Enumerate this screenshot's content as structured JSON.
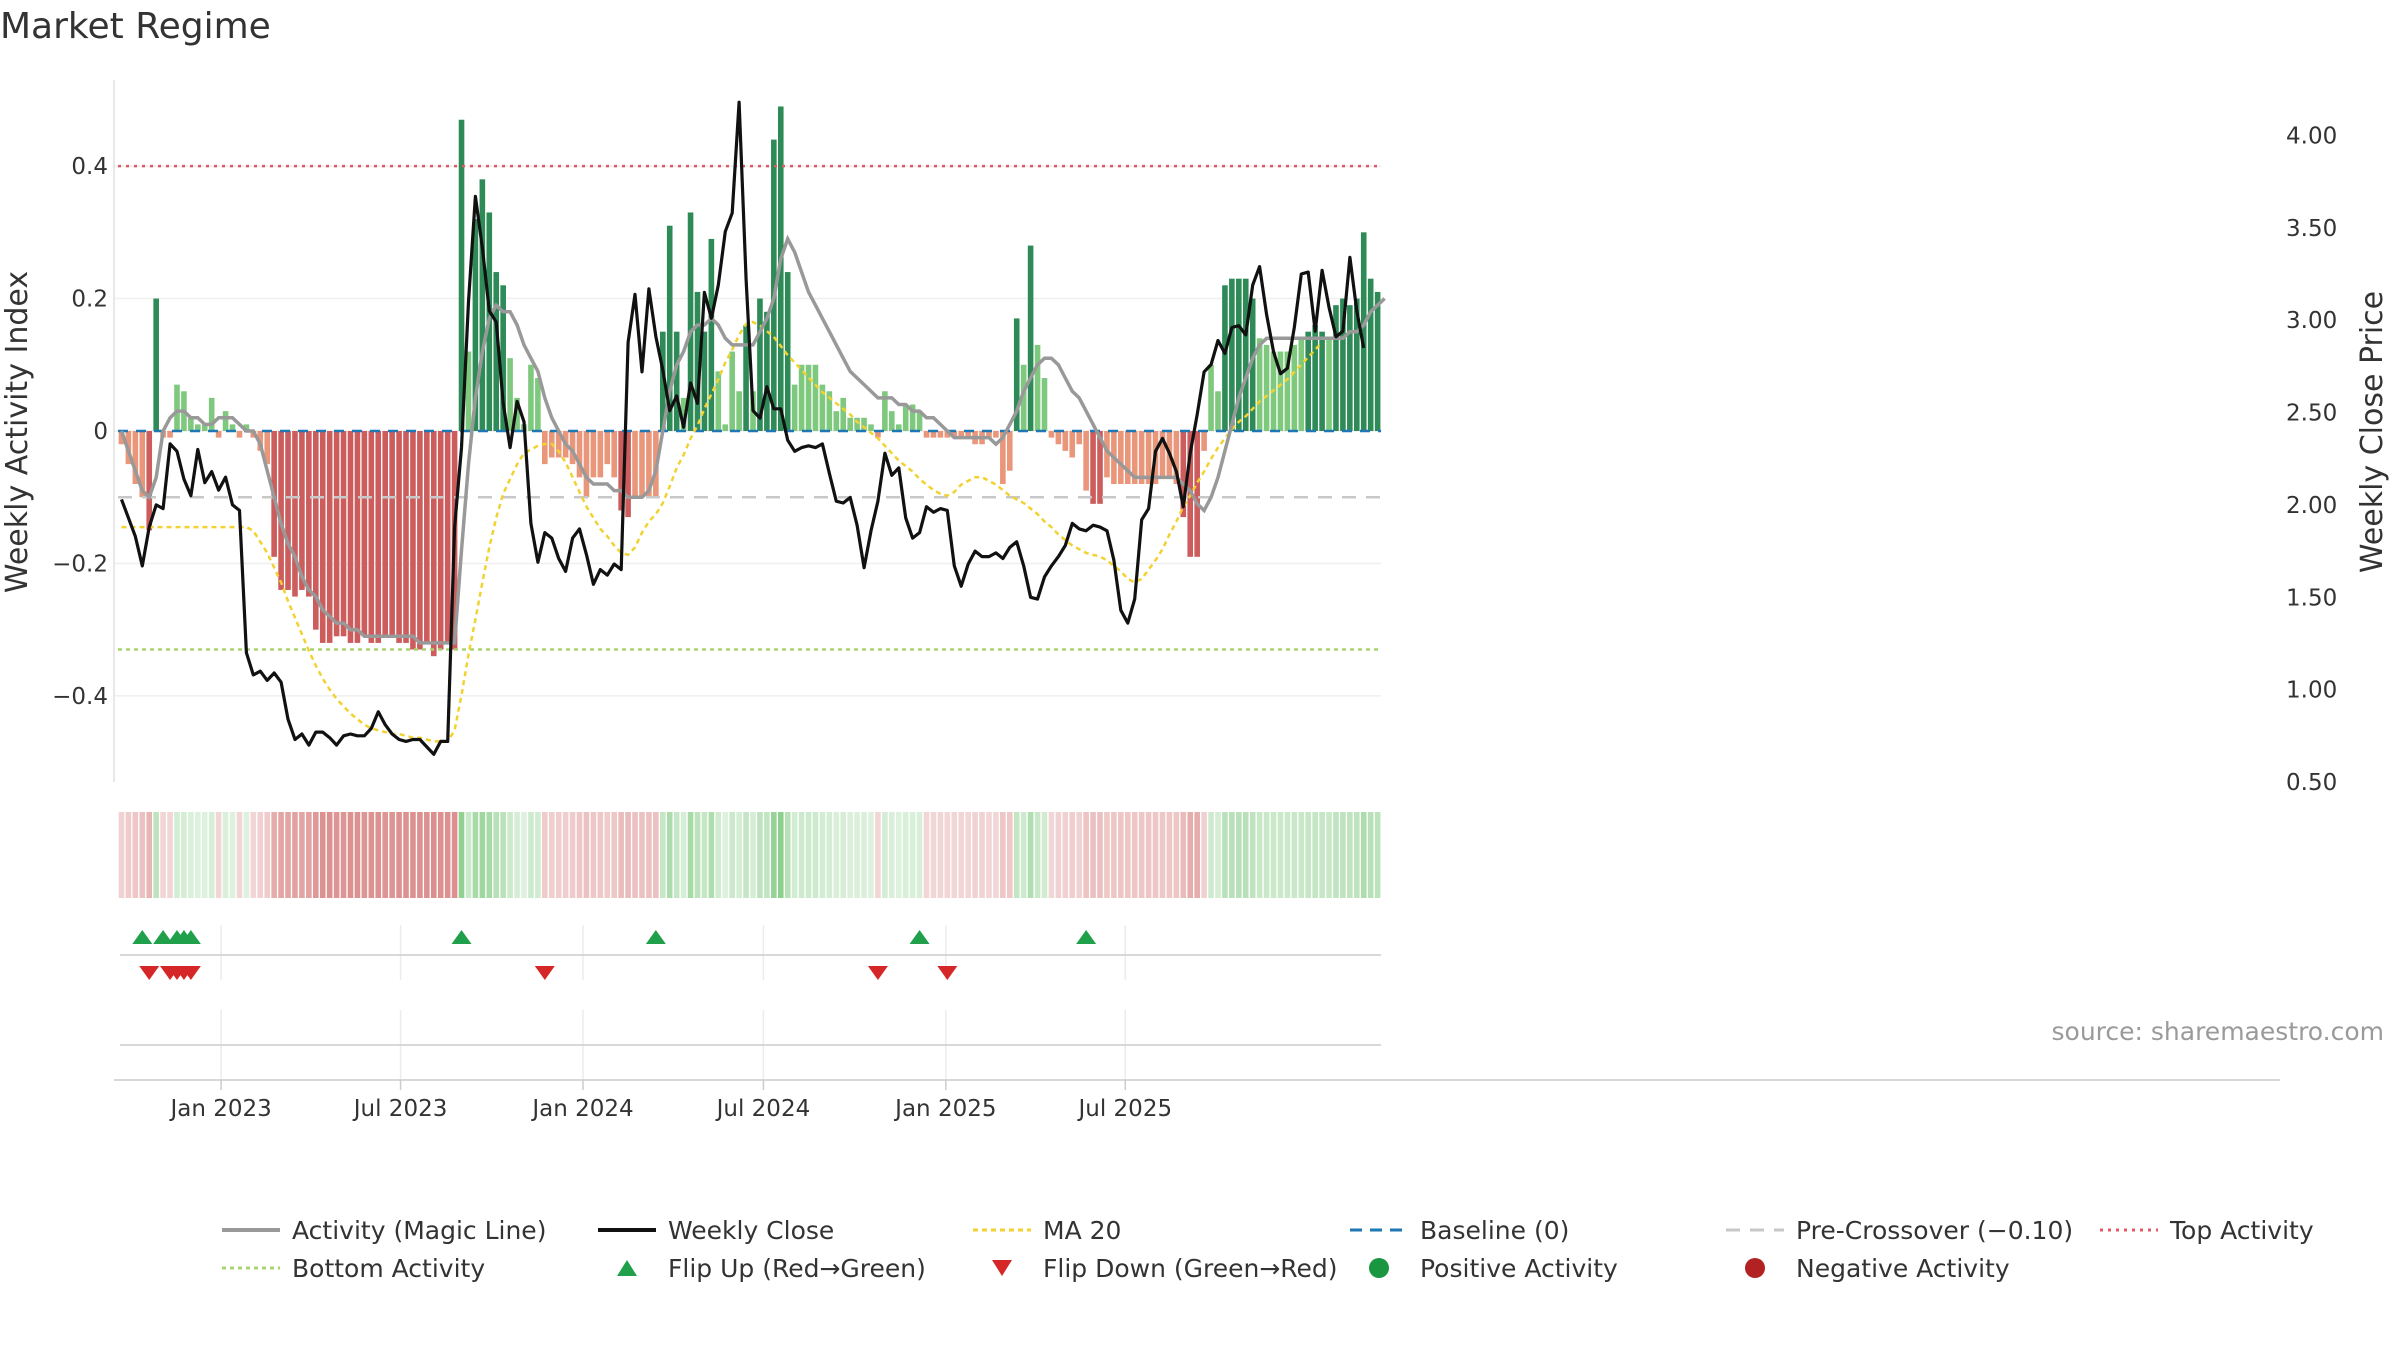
{
  "title": "Market Regime",
  "source": "source: sharemaestro.com",
  "colors": {
    "pos_dark": "#2e8b57",
    "pos_light": "#7fc97f",
    "neg_dark": "#cd5c5c",
    "neg_light": "#e9967a",
    "close": "#111111",
    "magic": "#999999",
    "ma20": "#f2d231",
    "baseline": "#1f77b4",
    "precross": "#c8c8c8",
    "top": "#e05a64",
    "bottom": "#a8d46f",
    "flip_up": "#20a04b",
    "flip_down": "#d62728",
    "pos_dot": "#1a9641",
    "neg_dot": "#b22222"
  },
  "chart_data": {
    "type": "bar",
    "title": "Market Regime",
    "x_start": "2022-09-19",
    "x_step_days": 7,
    "x_ticks": [
      "Jan 2023",
      "Jul 2023",
      "Jan 2024",
      "Jul 2024",
      "Jan 2025",
      "Jul 2025"
    ],
    "x_tick_dates": [
      "2023-01-01",
      "2023-07-01",
      "2024-01-01",
      "2024-07-01",
      "2025-01-01",
      "2025-07-01"
    ],
    "ylabel_left": "Weekly Activity Index",
    "ylabel_right": "Weekly Close Price",
    "ylim_left": [
      -0.53,
      0.53
    ],
    "ylim_right": [
      0.5,
      4.3
    ],
    "left_ticks": [
      0.4,
      0.2,
      0,
      -0.2,
      -0.4
    ],
    "left_tick_labels": [
      "0.4",
      "0.2",
      "0",
      "−0.2",
      "−0.4"
    ],
    "right_ticks": [
      4.0,
      3.5,
      3.0,
      2.5,
      2.0,
      1.5,
      1.0,
      0.5
    ],
    "right_tick_labels": [
      "4.00",
      "3.50",
      "3.00",
      "2.50",
      "2.00",
      "1.50",
      "1.00",
      "0.50"
    ],
    "reference_lines": {
      "top_activity": 0.4,
      "bottom_activity": -0.33,
      "pre_crossover": -0.1,
      "baseline": 0
    },
    "grid": true,
    "legend_position": "bottom",
    "activity": [
      -0.02,
      -0.05,
      -0.08,
      -0.1,
      -0.15,
      0.2,
      -0.01,
      -0.01,
      0.07,
      0.06,
      0.02,
      0.01,
      0.01,
      0.05,
      -0.01,
      0.03,
      0.01,
      -0.01,
      0.01,
      -0.01,
      -0.03,
      -0.05,
      -0.19,
      -0.24,
      -0.24,
      -0.25,
      -0.24,
      -0.25,
      -0.3,
      -0.32,
      -0.32,
      -0.31,
      -0.31,
      -0.32,
      -0.32,
      -0.31,
      -0.32,
      -0.32,
      -0.31,
      -0.31,
      -0.32,
      -0.32,
      -0.33,
      -0.33,
      -0.32,
      -0.34,
      -0.33,
      -0.32,
      -0.33,
      0.47,
      0.12,
      0.32,
      0.38,
      0.33,
      0.24,
      0.22,
      0.11,
      0.05,
      0.01,
      0.1,
      0.08,
      -0.05,
      -0.04,
      -0.04,
      -0.04,
      -0.05,
      -0.07,
      -0.1,
      -0.07,
      -0.07,
      -0.05,
      -0.07,
      -0.12,
      -0.13,
      -0.1,
      -0.1,
      -0.1,
      -0.1,
      0.15,
      0.31,
      0.15,
      0.05,
      0.33,
      0.21,
      0.15,
      0.29,
      0.09,
      0.01,
      0.12,
      0.06,
      0.16,
      0.06,
      0.2,
      0.18,
      0.44,
      0.49,
      0.24,
      0.07,
      0.1,
      0.1,
      0.1,
      0.07,
      0.06,
      0.03,
      0.05,
      0.02,
      0.02,
      0.02,
      0.01,
      -0.01,
      0.06,
      0.03,
      0.01,
      0.04,
      0.04,
      0.03,
      -0.01,
      -0.01,
      -0.01,
      -0.01,
      -0.01,
      -0.01,
      -0.01,
      -0.02,
      -0.02,
      -0.01,
      -0.01,
      -0.08,
      -0.06,
      0.17,
      0.1,
      0.28,
      0.13,
      0.08,
      -0.01,
      -0.02,
      -0.03,
      -0.04,
      -0.02,
      -0.09,
      -0.11,
      -0.11,
      -0.07,
      -0.08,
      -0.08,
      -0.08,
      -0.08,
      -0.08,
      -0.08,
      -0.08,
      -0.07,
      -0.07,
      -0.08,
      -0.13,
      -0.19,
      -0.19,
      -0.03,
      0.1,
      0.06,
      0.22,
      0.23,
      0.23,
      0.23,
      0.2,
      0.14,
      0.13,
      0.12,
      0.12,
      0.12,
      0.13,
      0.14,
      0.15,
      0.16,
      0.15,
      0.14,
      0.19,
      0.2,
      0.19,
      0.2,
      0.3,
      0.23,
      0.21
    ],
    "weekly_close": [
      2.03,
      1.93,
      1.83,
      1.67,
      1.88,
      2.0,
      1.98,
      2.33,
      2.29,
      2.14,
      2.05,
      2.3,
      2.12,
      2.18,
      2.08,
      2.15,
      2.0,
      1.97,
      1.2,
      1.08,
      1.1,
      1.05,
      1.09,
      1.04,
      0.84,
      0.73,
      0.76,
      0.7,
      0.77,
      0.77,
      0.74,
      0.7,
      0.75,
      0.76,
      0.75,
      0.75,
      0.79,
      0.88,
      0.81,
      0.76,
      0.73,
      0.72,
      0.73,
      0.73,
      0.69,
      0.65,
      0.72,
      0.72,
      1.88,
      2.31,
      3.1,
      3.67,
      3.39,
      3.05,
      2.99,
      2.55,
      2.31,
      2.56,
      2.45,
      1.9,
      1.69,
      1.85,
      1.82,
      1.71,
      1.64,
      1.82,
      1.87,
      1.73,
      1.57,
      1.65,
      1.62,
      1.68,
      1.65,
      2.88,
      3.14,
      2.72,
      3.17,
      2.91,
      2.73,
      2.51,
      2.59,
      2.42,
      2.66,
      2.55,
      3.15,
      3.01,
      3.19,
      3.48,
      3.58,
      4.18,
      3.22,
      2.51,
      2.47,
      2.64,
      2.52,
      2.52,
      2.35,
      2.29,
      2.31,
      2.32,
      2.31,
      2.33,
      2.17,
      2.02,
      2.01,
      2.04,
      1.89,
      1.66,
      1.86,
      2.02,
      2.28,
      2.16,
      2.2,
      1.93,
      1.82,
      1.85,
      1.99,
      1.96,
      1.98,
      1.97,
      1.67,
      1.56,
      1.68,
      1.75,
      1.72,
      1.72,
      1.74,
      1.71,
      1.77,
      1.8,
      1.67,
      1.5,
      1.49,
      1.61,
      1.67,
      1.72,
      1.78,
      1.9,
      1.87,
      1.86,
      1.89,
      1.88,
      1.86,
      1.7,
      1.43,
      1.36,
      1.49,
      1.92,
      1.98,
      2.29,
      2.36,
      2.28,
      2.18,
      1.99,
      2.28,
      2.49,
      2.72,
      2.76,
      2.89,
      2.82,
      2.96,
      2.97,
      2.92,
      3.19,
      3.29,
      3.03,
      2.83,
      2.71,
      2.74,
      2.96,
      3.25,
      3.26,
      2.94,
      3.27,
      3.07,
      2.91,
      2.94,
      3.34,
      3.05,
      2.85
    ],
    "magic_line": [
      0.0,
      -0.03,
      -0.06,
      -0.09,
      -0.1,
      -0.07,
      0.0,
      0.02,
      0.03,
      0.03,
      0.02,
      0.02,
      0.01,
      0.01,
      0.02,
      0.02,
      0.02,
      0.01,
      0.0,
      0.0,
      -0.02,
      -0.06,
      -0.1,
      -0.14,
      -0.17,
      -0.19,
      -0.22,
      -0.24,
      -0.25,
      -0.27,
      -0.28,
      -0.29,
      -0.29,
      -0.3,
      -0.3,
      -0.31,
      -0.31,
      -0.31,
      -0.31,
      -0.31,
      -0.31,
      -0.31,
      -0.31,
      -0.32,
      -0.32,
      -0.32,
      -0.32,
      -0.32,
      -0.32,
      -0.18,
      -0.05,
      0.05,
      0.12,
      0.17,
      0.19,
      0.18,
      0.18,
      0.16,
      0.13,
      0.11,
      0.09,
      0.05,
      0.02,
      0.0,
      -0.02,
      -0.03,
      -0.05,
      -0.07,
      -0.08,
      -0.08,
      -0.08,
      -0.09,
      -0.09,
      -0.1,
      -0.1,
      -0.1,
      -0.09,
      -0.06,
      0.0,
      0.06,
      0.1,
      0.12,
      0.15,
      0.16,
      0.16,
      0.17,
      0.16,
      0.14,
      0.13,
      0.13,
      0.13,
      0.13,
      0.15,
      0.17,
      0.2,
      0.26,
      0.29,
      0.27,
      0.24,
      0.21,
      0.19,
      0.17,
      0.15,
      0.13,
      0.11,
      0.09,
      0.08,
      0.07,
      0.06,
      0.05,
      0.05,
      0.05,
      0.04,
      0.04,
      0.03,
      0.03,
      0.02,
      0.02,
      0.01,
      0.0,
      -0.01,
      -0.01,
      -0.01,
      -0.01,
      -0.01,
      -0.01,
      -0.02,
      -0.01,
      0.01,
      0.03,
      0.06,
      0.08,
      0.1,
      0.11,
      0.11,
      0.1,
      0.08,
      0.06,
      0.05,
      0.03,
      0.01,
      -0.01,
      -0.03,
      -0.04,
      -0.05,
      -0.06,
      -0.07,
      -0.07,
      -0.07,
      -0.07,
      -0.07,
      -0.07,
      -0.07,
      -0.08,
      -0.09,
      -0.11,
      -0.12,
      -0.1,
      -0.07,
      -0.03,
      0.01,
      0.05,
      0.08,
      0.11,
      0.13,
      0.14,
      0.14,
      0.14,
      0.14,
      0.14,
      0.14,
      0.14,
      0.14,
      0.14,
      0.14,
      0.14,
      0.14,
      0.15,
      0.15,
      0.16,
      0.18,
      0.19,
      0.2
    ],
    "ma20": [
      1.88,
      1.88,
      1.88,
      1.88,
      1.88,
      1.88,
      1.88,
      1.88,
      1.88,
      1.88,
      1.88,
      1.88,
      1.88,
      1.88,
      1.88,
      1.88,
      1.88,
      1.88,
      1.88,
      1.86,
      1.8,
      1.74,
      1.66,
      1.58,
      1.48,
      1.39,
      1.3,
      1.21,
      1.13,
      1.06,
      1.0,
      0.95,
      0.91,
      0.87,
      0.84,
      0.81,
      0.79,
      0.78,
      0.77,
      0.76,
      0.76,
      0.75,
      0.74,
      0.74,
      0.73,
      0.72,
      0.72,
      0.72,
      0.78,
      0.97,
      1.19,
      1.38,
      1.58,
      1.77,
      1.93,
      2.06,
      2.14,
      2.22,
      2.28,
      2.3,
      2.32,
      2.33,
      2.33,
      2.29,
      2.23,
      2.15,
      2.07,
      1.99,
      1.93,
      1.87,
      1.83,
      1.78,
      1.74,
      1.73,
      1.77,
      1.85,
      1.91,
      1.95,
      2.01,
      2.1,
      2.2,
      2.27,
      2.36,
      2.43,
      2.52,
      2.6,
      2.68,
      2.77,
      2.84,
      2.92,
      2.98,
      2.99,
      2.97,
      2.94,
      2.91,
      2.86,
      2.81,
      2.77,
      2.73,
      2.69,
      2.65,
      2.61,
      2.58,
      2.55,
      2.52,
      2.49,
      2.45,
      2.42,
      2.39,
      2.36,
      2.32,
      2.28,
      2.24,
      2.21,
      2.18,
      2.14,
      2.11,
      2.08,
      2.06,
      2.05,
      2.07,
      2.11,
      2.13,
      2.15,
      2.15,
      2.13,
      2.11,
      2.08,
      2.05,
      2.03,
      2.01,
      1.98,
      1.95,
      1.91,
      1.88,
      1.84,
      1.81,
      1.78,
      1.76,
      1.74,
      1.73,
      1.72,
      1.7,
      1.67,
      1.64,
      1.6,
      1.58,
      1.6,
      1.65,
      1.7,
      1.76,
      1.84,
      1.91,
      1.99,
      2.05,
      2.12,
      2.18,
      2.25,
      2.31,
      2.36,
      2.41,
      2.45,
      2.48,
      2.52,
      2.56,
      2.59,
      2.62,
      2.65,
      2.68,
      2.72,
      2.76,
      2.8,
      2.84,
      2.88
    ],
    "flip_up_weeks": [
      3,
      6,
      8,
      9,
      10,
      49,
      77,
      115,
      139
    ],
    "flip_down_weeks": [
      4,
      7,
      8,
      9,
      10,
      61,
      109,
      119
    ],
    "legend": [
      "Activity (Magic Line)",
      "Weekly Close",
      "MA 20",
      "Baseline (0)",
      "Pre-Crossover (−0.10)",
      "Top Activity",
      "Bottom Activity",
      "Flip Up (Red→Green)",
      "Flip Down (Green→Red)",
      "Positive Activity",
      "Negative Activity"
    ]
  }
}
